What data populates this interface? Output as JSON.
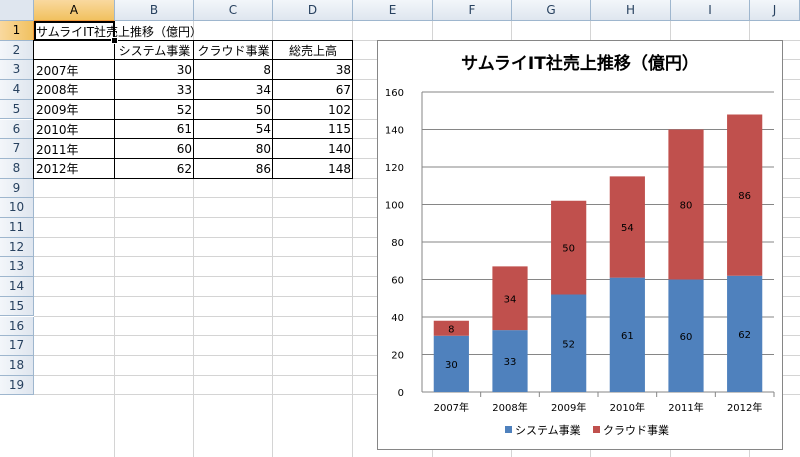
{
  "spreadsheet": {
    "columns": [
      "A",
      "B",
      "C",
      "D",
      "E",
      "F",
      "G",
      "H",
      "I",
      "J"
    ],
    "rows": [
      "1",
      "2",
      "3",
      "4",
      "5",
      "6",
      "7",
      "8",
      "9",
      "10",
      "11",
      "12",
      "13",
      "14",
      "15",
      "16",
      "17",
      "18",
      "19"
    ],
    "title_cell": "サムライIT社売上推移（億円）",
    "table": {
      "headers": [
        "",
        "システム事業",
        "クラウド事業",
        "総売上高"
      ],
      "rows": [
        [
          "2007年",
          "30",
          "8",
          "38"
        ],
        [
          "2008年",
          "33",
          "34",
          "67"
        ],
        [
          "2009年",
          "52",
          "50",
          "102"
        ],
        [
          "2010年",
          "61",
          "54",
          "115"
        ],
        [
          "2011年",
          "60",
          "80",
          "140"
        ],
        [
          "2012年",
          "62",
          "86",
          "148"
        ]
      ]
    }
  },
  "chart_data": {
    "type": "bar",
    "stacked": true,
    "title": "サムライIT社売上推移（億円）",
    "categories": [
      "2007年",
      "2008年",
      "2009年",
      "2010年",
      "2011年",
      "2012年"
    ],
    "series": [
      {
        "name": "システム事業",
        "values": [
          30,
          33,
          52,
          61,
          60,
          62
        ],
        "color": "#4f81bd"
      },
      {
        "name": "クラウド事業",
        "values": [
          8,
          34,
          50,
          54,
          80,
          86
        ],
        "color": "#c0504d"
      }
    ],
    "ylim": [
      0,
      160
    ],
    "yticks": [
      0,
      20,
      40,
      60,
      80,
      100,
      120,
      140,
      160
    ],
    "grid": true,
    "legend": "bottom",
    "data_labels": true
  }
}
